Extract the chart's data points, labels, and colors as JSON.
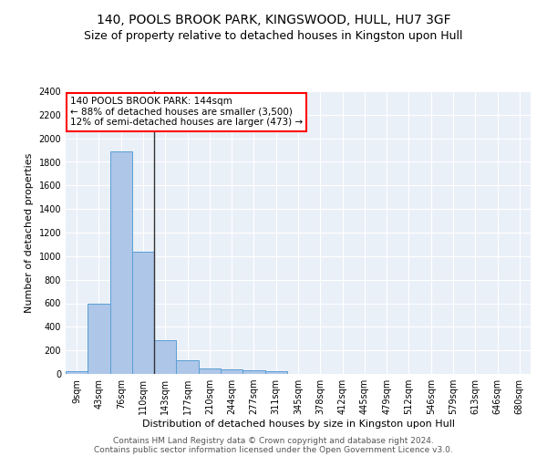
{
  "title1": "140, POOLS BROOK PARK, KINGSWOOD, HULL, HU7 3GF",
  "title2": "Size of property relative to detached houses in Kingston upon Hull",
  "xlabel": "Distribution of detached houses by size in Kingston upon Hull",
  "ylabel": "Number of detached properties",
  "footer1": "Contains HM Land Registry data © Crown copyright and database right 2024.",
  "footer2": "Contains public sector information licensed under the Open Government Licence v3.0.",
  "annotation_title": "140 POOLS BROOK PARK: 144sqm",
  "annotation_line2": "← 88% of detached houses are smaller (3,500)",
  "annotation_line3": "12% of semi-detached houses are larger (473) →",
  "bar_labels": [
    "9sqm",
    "43sqm",
    "76sqm",
    "110sqm",
    "143sqm",
    "177sqm",
    "210sqm",
    "244sqm",
    "277sqm",
    "311sqm",
    "345sqm",
    "378sqm",
    "412sqm",
    "445sqm",
    "479sqm",
    "512sqm",
    "546sqm",
    "579sqm",
    "613sqm",
    "646sqm",
    "680sqm"
  ],
  "bar_values": [
    20,
    600,
    1890,
    1035,
    285,
    115,
    50,
    35,
    30,
    20,
    0,
    0,
    0,
    0,
    0,
    0,
    0,
    0,
    0,
    0,
    0
  ],
  "bar_color": "#aec6e8",
  "bar_edge_color": "#5a9fd4",
  "vline_x": 3.5,
  "ylim": [
    0,
    2400
  ],
  "yticks": [
    0,
    200,
    400,
    600,
    800,
    1000,
    1200,
    1400,
    1600,
    1800,
    2000,
    2200,
    2400
  ],
  "background_color": "#eaf0f8",
  "title_fontsize": 10,
  "subtitle_fontsize": 9,
  "axis_label_fontsize": 8,
  "tick_fontsize": 7,
  "footer_fontsize": 6.5,
  "annotation_fontsize": 7.5
}
